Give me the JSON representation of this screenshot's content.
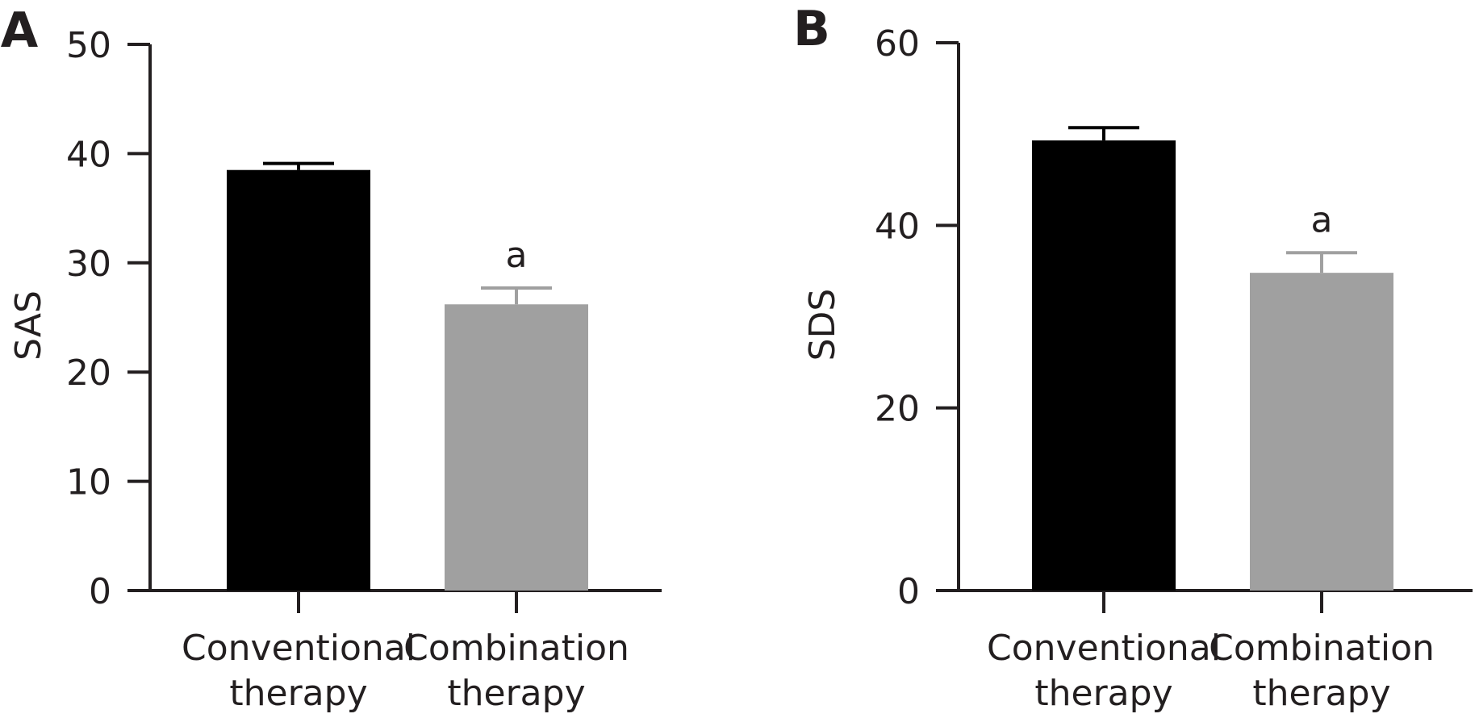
{
  "chart_data": [
    {
      "type": "bar",
      "panel_label": "A",
      "ylabel": "SAS",
      "ylim": [
        0,
        50
      ],
      "yticks": [
        "0",
        "10",
        "20",
        "30",
        "40",
        "50"
      ],
      "categories": [
        {
          "line1": "Conventional",
          "line2": "therapy"
        },
        {
          "line1": "Combination",
          "line2": "therapy"
        }
      ],
      "values": [
        38.5,
        26.2
      ],
      "errors": [
        0.6,
        1.5
      ],
      "colors": [
        "#000000",
        "#a0a0a0"
      ],
      "annotations": [
        "",
        "a"
      ]
    },
    {
      "type": "bar",
      "panel_label": "B",
      "ylabel": "SDS",
      "ylim": [
        0,
        60
      ],
      "yticks": [
        "0",
        "20",
        "40",
        "60"
      ],
      "categories": [
        {
          "line1": "Conventional",
          "line2": "therapy"
        },
        {
          "line1": "Combination",
          "line2": "therapy"
        }
      ],
      "values": [
        49.3,
        34.8
      ],
      "errors": [
        1.4,
        2.2
      ],
      "colors": [
        "#000000",
        "#a0a0a0"
      ],
      "annotations": [
        "",
        "a"
      ]
    }
  ]
}
